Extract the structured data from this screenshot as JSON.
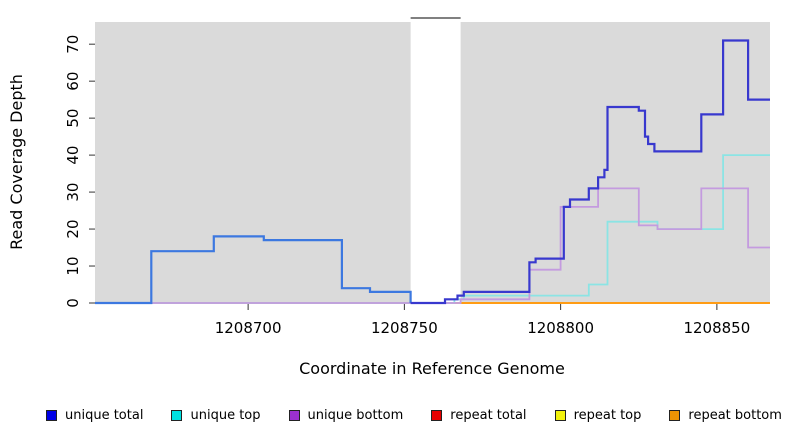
{
  "figure": {
    "xlabel": "Coordinate in Reference Genome",
    "ylabel": "Read Coverage Depth"
  },
  "chart_data": {
    "type": "line",
    "step": true,
    "title": "",
    "xlabel": "Coordinate in Reference Genome",
    "ylabel": "Read Coverage Depth",
    "xlim": [
      1208651,
      1208867
    ],
    "ylim": [
      0,
      76
    ],
    "xticks": [
      1208700,
      1208750,
      1208800,
      1208850
    ],
    "yticks": [
      0,
      10,
      20,
      30,
      40,
      50,
      60,
      70
    ],
    "grid": false,
    "legend_position": "bottom",
    "plot_background": "#DADADA",
    "masked_region": {
      "x_start": 1208752,
      "x_end": 1208768,
      "fill": "#FFFFFF",
      "cap_color": "#808080"
    },
    "series": [
      {
        "name": "repeat total",
        "line_color": "#E04B5E",
        "line_width": 1.6,
        "points": [
          [
            1208651,
            0
          ]
        ]
      },
      {
        "name": "repeat top",
        "line_color": "#F0F000",
        "line_width": 1.6,
        "points": [
          [
            1208651,
            0
          ]
        ]
      },
      {
        "name": "repeat bottom",
        "line_color": "#FF9C14",
        "line_width": 2,
        "points": [
          [
            1208768,
            0
          ]
        ]
      },
      {
        "name": "unique top",
        "line_color": "#8BE4E4",
        "line_width": 1.8,
        "points": [
          [
            1208651,
            0
          ],
          [
            1208766,
            1
          ],
          [
            1208769,
            2
          ],
          [
            1208809,
            5
          ],
          [
            1208815,
            22
          ],
          [
            1208831,
            20
          ],
          [
            1208852,
            40
          ]
        ]
      },
      {
        "name": "unique bottom",
        "line_color": "#C49BDF",
        "line_width": 1.8,
        "points": [
          [
            1208651,
            0
          ],
          [
            1208768,
            1
          ],
          [
            1208790,
            9
          ],
          [
            1208800,
            26
          ],
          [
            1208812,
            31
          ],
          [
            1208825,
            21
          ],
          [
            1208831,
            20
          ],
          [
            1208845,
            31
          ],
          [
            1208860,
            15
          ]
        ]
      },
      {
        "name": "unique total",
        "line_color": "#3838CE",
        "line_color_before_split": "#3C78E0",
        "split_x": 1208752,
        "line_width": 2.2,
        "points": [
          [
            1208651,
            0
          ],
          [
            1208669,
            14
          ],
          [
            1208689,
            18
          ],
          [
            1208705,
            17
          ],
          [
            1208730,
            4
          ],
          [
            1208739,
            3
          ],
          [
            1208752,
            0
          ],
          [
            1208763,
            1
          ],
          [
            1208767,
            2
          ],
          [
            1208769,
            3
          ],
          [
            1208790,
            11
          ],
          [
            1208792,
            12
          ],
          [
            1208801,
            26
          ],
          [
            1208803,
            28
          ],
          [
            1208809,
            31
          ],
          [
            1208812,
            34
          ],
          [
            1208814,
            36
          ],
          [
            1208815,
            53
          ],
          [
            1208825,
            52
          ],
          [
            1208827,
            45
          ],
          [
            1208828,
            43
          ],
          [
            1208830,
            41
          ],
          [
            1208845,
            51
          ],
          [
            1208852,
            71
          ],
          [
            1208860,
            55
          ]
        ]
      }
    ],
    "legend": [
      {
        "label": "unique total",
        "color": "#0000E6"
      },
      {
        "label": "unique top",
        "color": "#00E0E0"
      },
      {
        "label": "unique bottom",
        "color": "#9B30D0"
      },
      {
        "label": "repeat total",
        "color": "#E60000"
      },
      {
        "label": "repeat top",
        "color": "#F2F20C"
      },
      {
        "label": "repeat bottom",
        "color": "#EE9404"
      }
    ]
  }
}
